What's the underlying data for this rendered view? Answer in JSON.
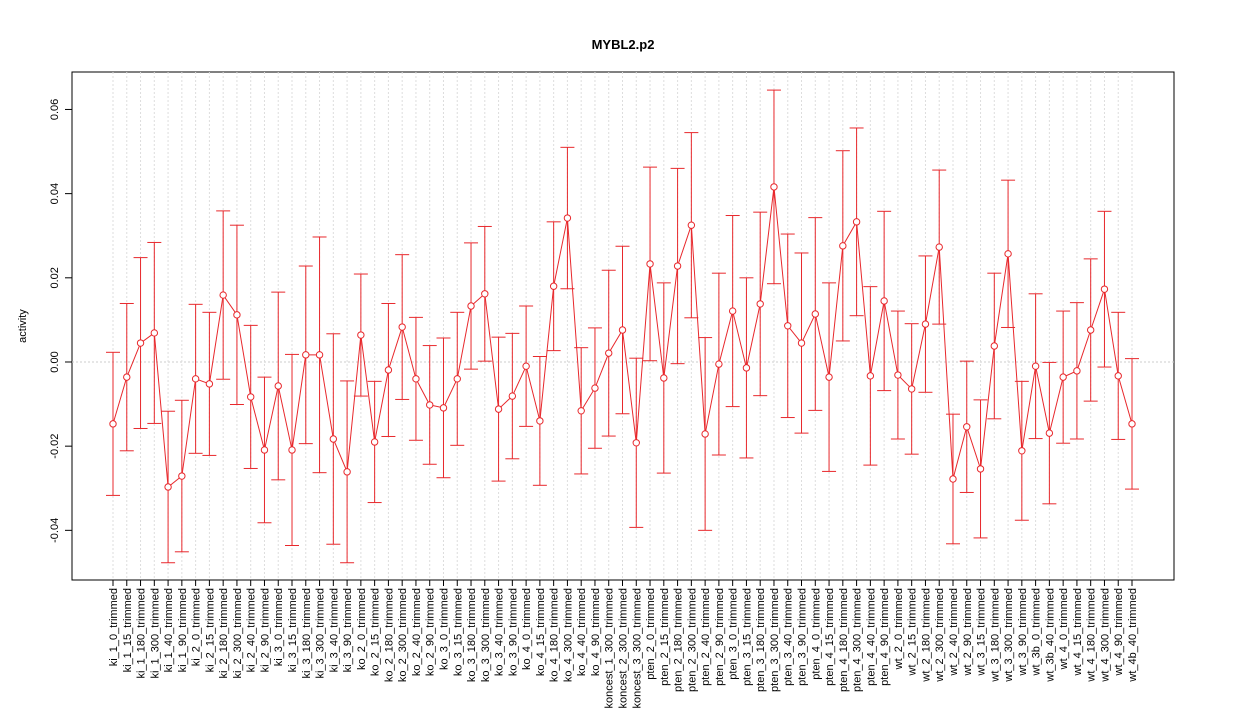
{
  "chart_data": {
    "type": "errorbar-line",
    "title": "MYBL2.p2",
    "y_label": "activity",
    "categories": [
      "ki_1_0_trimmed",
      "ki_1_15_trimmed",
      "ki_1_180_trimmed",
      "ki_1_300_trimmed",
      "ki_1_40_trimmed",
      "ki_1_90_trimmed",
      "ki_2_0_trimmed",
      "ki_2_15_trimmed",
      "ki_2_180_trimmed",
      "ki_2_300_trimmed",
      "ki_2_40_trimmed",
      "ki_2_90_trimmed",
      "ki_3_0_trimmed",
      "ki_3_15_trimmed",
      "ki_3_180_trimmed",
      "ki_3_300_trimmed",
      "ki_3_40_trimmed",
      "ki_3_90_trimmed",
      "ko_2_0_trimmed",
      "ko_2_15_trimmed",
      "ko_2_180_trimmed",
      "ko_2_300_trimmed",
      "ko_2_40_trimmed",
      "ko_2_90_trimmed",
      "ko_3_0_trimmed",
      "ko_3_15_trimmed",
      "ko_3_180_trimmed",
      "ko_3_300_trimmed",
      "ko_3_40_trimmed",
      "ko_3_90_trimmed",
      "ko_4_0_trimmed",
      "ko_4_15_trimmed",
      "ko_4_180_trimmed",
      "ko_4_300_trimmed",
      "ko_4_40_trimmed",
      "ko_4_90_trimmed",
      "koncest_1_300_trimmed",
      "koncest_2_300_trimmed",
      "koncest_3_300_trimmed",
      "pten_2_0_trimmed",
      "pten_2_15_trimmed",
      "pten_2_180_trimmed",
      "pten_2_300_trimmed",
      "pten_2_40_trimmed",
      "pten_2_90_trimmed",
      "pten_3_0_trimmed",
      "pten_3_15_trimmed",
      "pten_3_180_trimmed",
      "pten_3_300_trimmed",
      "pten_3_40_trimmed",
      "pten_3_90_trimmed",
      "pten_4_0_trimmed",
      "pten_4_15_trimmed",
      "pten_4_180_trimmed",
      "pten_4_300_trimmed",
      "pten_4_40_trimmed",
      "pten_4_90_trimmed",
      "wt_2_0_trimmed",
      "wt_2_15_trimmed",
      "wt_2_180_trimmed",
      "wt_2_300_trimmed",
      "wt_2_40_trimmed",
      "wt_2_90_trimmed",
      "wt_3_15_trimmed",
      "wt_3_180_trimmed",
      "wt_3_300_trimmed",
      "wt_3_90_trimmed",
      "wt_3b_0_trimmed",
      "wt_3b_40_trimmed",
      "wt_4_0_trimmed",
      "wt_4_15_trimmed",
      "wt_4_180_trimmed",
      "wt_4_300_trimmed",
      "wt_4_90_trimmed",
      "wt_4b_40_trimmed"
    ],
    "values": [
      -0.0147,
      -0.0036,
      0.0045,
      0.0069,
      -0.0297,
      -0.0271,
      -0.004,
      -0.0052,
      0.0159,
      0.0112,
      -0.0083,
      -0.0209,
      -0.0057,
      -0.0209,
      0.0017,
      0.0017,
      -0.0183,
      -0.0261,
      0.0064,
      -0.019,
      -0.0019,
      0.0083,
      -0.004,
      -0.0102,
      -0.0109,
      -0.004,
      0.0133,
      0.0162,
      -0.0112,
      -0.0081,
      -0.001,
      -0.014,
      0.018,
      0.0342,
      -0.0116,
      -0.0062,
      0.0021,
      0.0076,
      -0.0192,
      0.0233,
      -0.0038,
      0.0228,
      0.0325,
      -0.0171,
      -0.0005,
      0.0121,
      -0.0014,
      0.0138,
      0.0416,
      0.0086,
      0.0045,
      0.0114,
      -0.0036,
      0.0276,
      0.0333,
      -0.0033,
      0.0145,
      -0.0031,
      -0.0064,
      0.009,
      0.0273,
      -0.0278,
      -0.0154,
      -0.0254,
      0.0038,
      0.0257,
      -0.0211,
      -0.001,
      -0.0169,
      -0.0036,
      -0.0021,
      0.0076,
      0.0173,
      -0.0033,
      -0.0147
    ],
    "errors": [
      0.017,
      0.0175,
      0.0203,
      0.0215,
      0.018,
      0.018,
      0.0177,
      0.017,
      0.02,
      0.0213,
      0.017,
      0.0173,
      0.0223,
      0.0227,
      0.0211,
      0.028,
      0.025,
      0.0216,
      0.0145,
      0.0144,
      0.0158,
      0.0172,
      0.0146,
      0.0141,
      0.0166,
      0.0158,
      0.015,
      0.016,
      0.0171,
      0.0149,
      0.0143,
      0.0153,
      0.0153,
      0.0168,
      0.015,
      0.0143,
      0.0197,
      0.0199,
      0.0201,
      0.023,
      0.0226,
      0.0232,
      0.022,
      0.0229,
      0.0216,
      0.0227,
      0.0214,
      0.0218,
      0.023,
      0.0218,
      0.0214,
      0.0229,
      0.0224,
      0.0226,
      0.0223,
      0.0212,
      0.0213,
      0.0152,
      0.0155,
      0.0162,
      0.0183,
      0.0154,
      0.0156,
      0.0164,
      0.0173,
      0.0175,
      0.0165,
      0.0172,
      0.0168,
      0.0157,
      0.0162,
      0.0169,
      0.0185,
      0.0151,
      0.0155
    ],
    "color": "#e8282c",
    "ylim": [
      -0.0518,
      0.0689
    ],
    "yticks": [
      -0.04,
      -0.02,
      {
        "value": 0,
        "label": "0.00"
      },
      0.02,
      0.04,
      0.06
    ],
    "reference_line": 0,
    "grid": true
  }
}
